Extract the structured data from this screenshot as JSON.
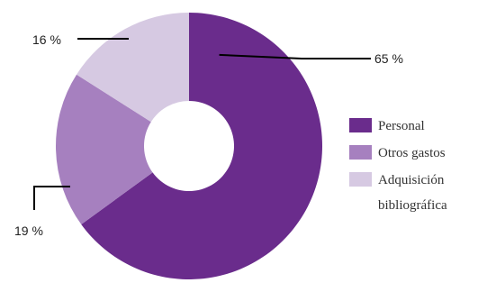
{
  "chart_data": {
    "type": "pie",
    "style": "donut",
    "title": "",
    "slices": [
      {
        "name": "Personal",
        "value": 65,
        "label": "65 %",
        "color": "#6a2c8c"
      },
      {
        "name": "Otros gastos",
        "value": 19,
        "label": "19 %",
        "color": "#a680bf"
      },
      {
        "name": "Adquisición bibliográfica",
        "value": 16,
        "label": "16 %",
        "color": "#d6c9e2"
      }
    ],
    "legend": {
      "placement": "right",
      "entries": [
        {
          "lines": [
            "Personal"
          ],
          "color": "#6a2c8c"
        },
        {
          "lines": [
            "Otros gastos"
          ],
          "color": "#a680bf"
        },
        {
          "lines": [
            "Adquisición",
            "bibliográfica"
          ],
          "color": "#d6c9e2"
        }
      ]
    }
  }
}
